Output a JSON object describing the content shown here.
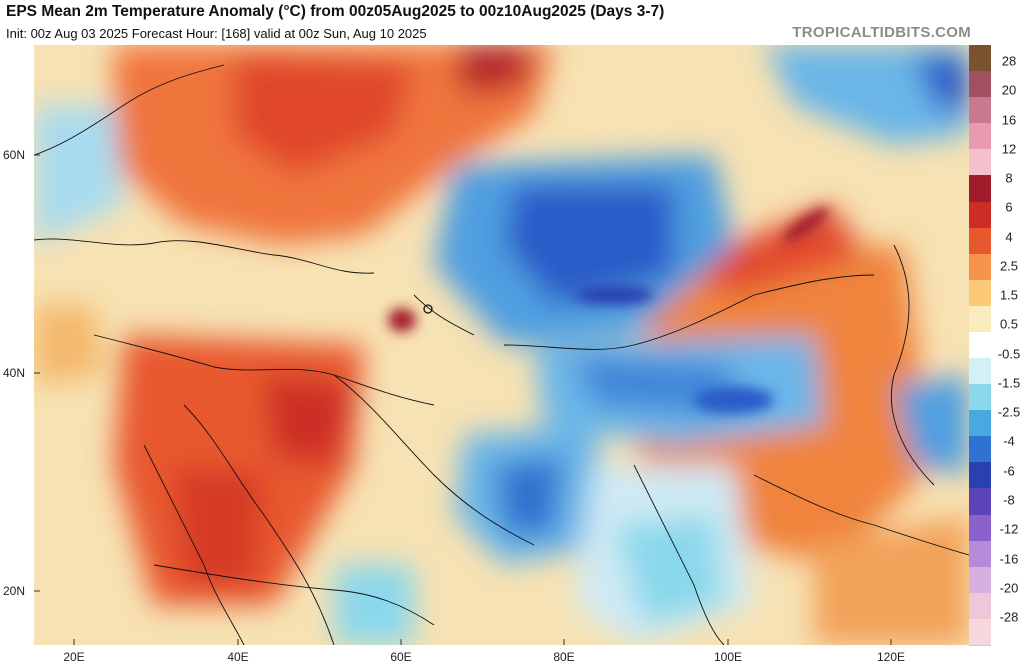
{
  "header": {
    "title": "EPS Mean 2m Temperature Anomaly (°C) from 00z05Aug2025 to 00z10Aug2025 (Days 3-7)",
    "subtitle": "Init: 00z Aug 03 2025   Forecast Hour: [168]   valid at 00z Sun, Aug 10 2025",
    "brand": "TROPICALTIDBITS.COM"
  },
  "axes": {
    "latitude_labels": [
      "60N",
      "40N",
      "20N"
    ],
    "longitude_labels": [
      "20E",
      "40E",
      "60E",
      "80E",
      "100E",
      "120E"
    ]
  },
  "colorbar": {
    "labels": [
      "28",
      "20",
      "16",
      "12",
      "8",
      "6",
      "4",
      "2.5",
      "1.5",
      "0.5",
      "-0.5",
      "-1.5",
      "-2.5",
      "-4",
      "-6",
      "-8",
      "-12",
      "-16",
      "-20",
      "-28"
    ],
    "colors": [
      "#7a5230",
      "#a05060",
      "#c87890",
      "#e89ab0",
      "#f4c0cc",
      "#a01c2c",
      "#cc2e26",
      "#e8582e",
      "#f5944a",
      "#fbc977",
      "#fbecc0",
      "#ffffff",
      "#d2f0f6",
      "#8ad8ec",
      "#4aa8e0",
      "#2f72d0",
      "#2a3fb0",
      "#5a44b8",
      "#8a62cc",
      "#b68ad8",
      "#d8b0e0",
      "#ecc8d8",
      "#f4d8dc"
    ]
  },
  "palette": {
    "base_warm": "#f7e2b3",
    "warm": "#f5944a",
    "red": "#e0462c",
    "deep_red": "#b5242c",
    "neutral": "#ffffff",
    "light_blue": "#a8dcef",
    "blue": "#4f9fe0",
    "deep_blue": "#2a5cc8"
  }
}
